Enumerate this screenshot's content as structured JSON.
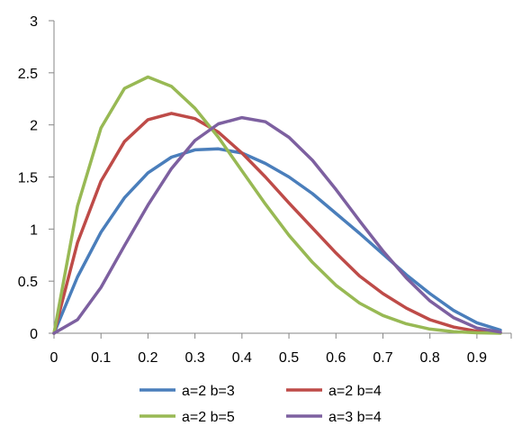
{
  "chart_data": {
    "type": "line",
    "title": "",
    "xlabel": "",
    "ylabel": "",
    "xlim": [
      0,
      0.95
    ],
    "ylim": [
      0,
      3
    ],
    "grid": false,
    "legend_placement": "bottom",
    "x": [
      0,
      0.05,
      0.1,
      0.15,
      0.2,
      0.25,
      0.3,
      0.35,
      0.4,
      0.45,
      0.5,
      0.55,
      0.6,
      0.65,
      0.7,
      0.75,
      0.8,
      0.85,
      0.9,
      0.95
    ],
    "x_tick_labels": [
      "0",
      "0.1",
      "0.2",
      "0.3",
      "0.4",
      "0.5",
      "0.6",
      "0.7",
      "0.8",
      "0.9"
    ],
    "x_tick_values": [
      0,
      0.1,
      0.2,
      0.3,
      0.4,
      0.5,
      0.6,
      0.7,
      0.8,
      0.9
    ],
    "y_tick_labels": [
      "0",
      "0.5",
      "1",
      "1.5",
      "2",
      "2.5",
      "3"
    ],
    "y_tick_values": [
      0,
      0.5,
      1,
      1.5,
      2,
      2.5,
      3
    ],
    "series": [
      {
        "name": "a=2 b=3",
        "color": "#4a7ebb",
        "values": [
          0,
          0.54,
          0.97,
          1.3,
          1.54,
          1.69,
          1.76,
          1.77,
          1.73,
          1.63,
          1.5,
          1.34,
          1.15,
          0.96,
          0.76,
          0.56,
          0.38,
          0.22,
          0.1,
          0.03
        ]
      },
      {
        "name": "a=2 b=4",
        "color": "#be4b48",
        "values": [
          0,
          0.87,
          1.46,
          1.84,
          2.05,
          2.11,
          2.06,
          1.93,
          1.73,
          1.5,
          1.25,
          1.01,
          0.77,
          0.55,
          0.38,
          0.24,
          0.13,
          0.06,
          0.02,
          0.003
        ]
      },
      {
        "name": "a=2 b=5",
        "color": "#98b954",
        "values": [
          0,
          1.22,
          1.97,
          2.35,
          2.46,
          2.37,
          2.16,
          1.88,
          1.56,
          1.24,
          0.94,
          0.68,
          0.46,
          0.29,
          0.17,
          0.09,
          0.04,
          0.015,
          0.004,
          0
        ]
      },
      {
        "name": "a=3 b=4",
        "color": "#7d60a0",
        "values": [
          0,
          0.13,
          0.44,
          0.84,
          1.23,
          1.58,
          1.85,
          2.01,
          2.07,
          2.03,
          1.88,
          1.66,
          1.38,
          1.08,
          0.79,
          0.53,
          0.31,
          0.15,
          0.05,
          0.01
        ]
      }
    ]
  }
}
